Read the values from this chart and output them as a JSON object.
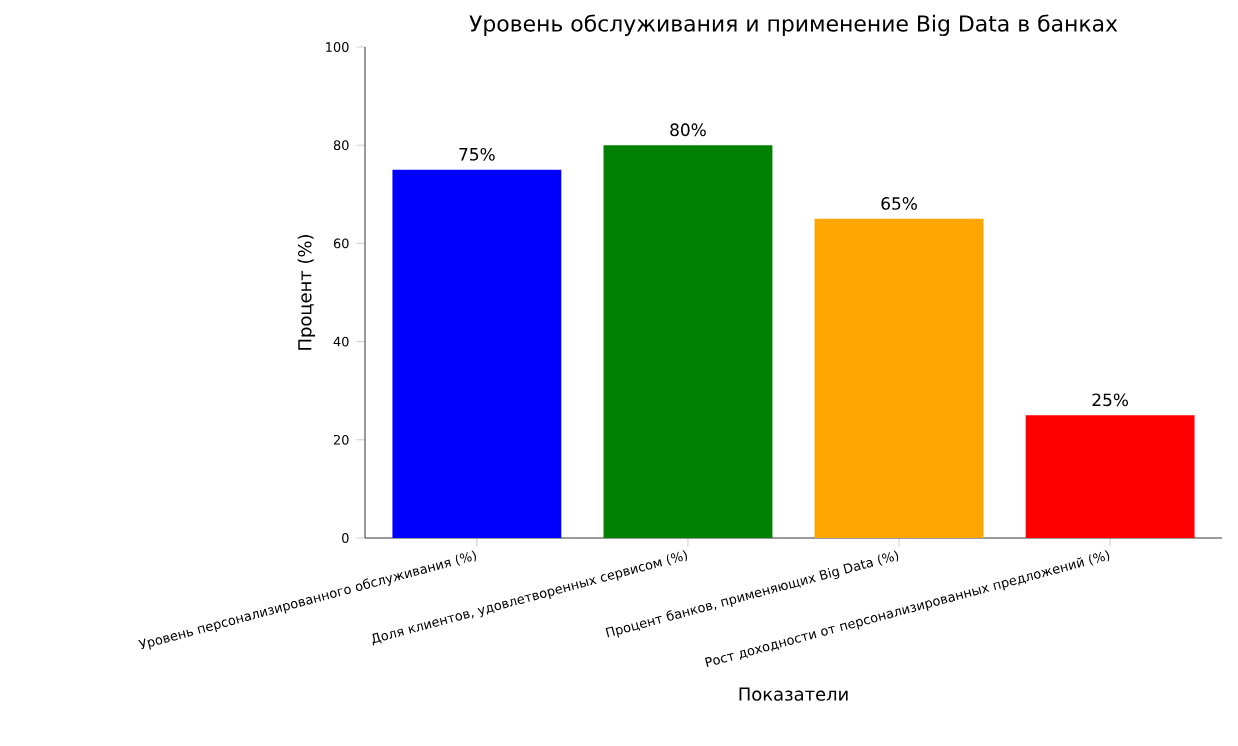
{
  "chart_data": {
    "type": "bar",
    "title": "Уровень обслуживания и применение Big Data в банках",
    "xlabel": "Показатели",
    "ylabel": "Процент (%)",
    "categories": [
      "Уровень персонализированного обслуживания (%)",
      "Доля клиентов, удовлетворенных сервисом (%)",
      "Процент банков, применяющих Big Data (%)",
      "Рост доходности от персонализированных предложений (%)"
    ],
    "values": [
      75,
      80,
      65,
      25
    ],
    "colors": [
      "#0000ff",
      "#008000",
      "#ffa500",
      "#ff0000"
    ],
    "value_labels": [
      "75%",
      "80%",
      "65%",
      "25%"
    ],
    "ylim": [
      0,
      100
    ],
    "yticks": [
      0,
      20,
      40,
      60,
      80,
      100
    ]
  }
}
